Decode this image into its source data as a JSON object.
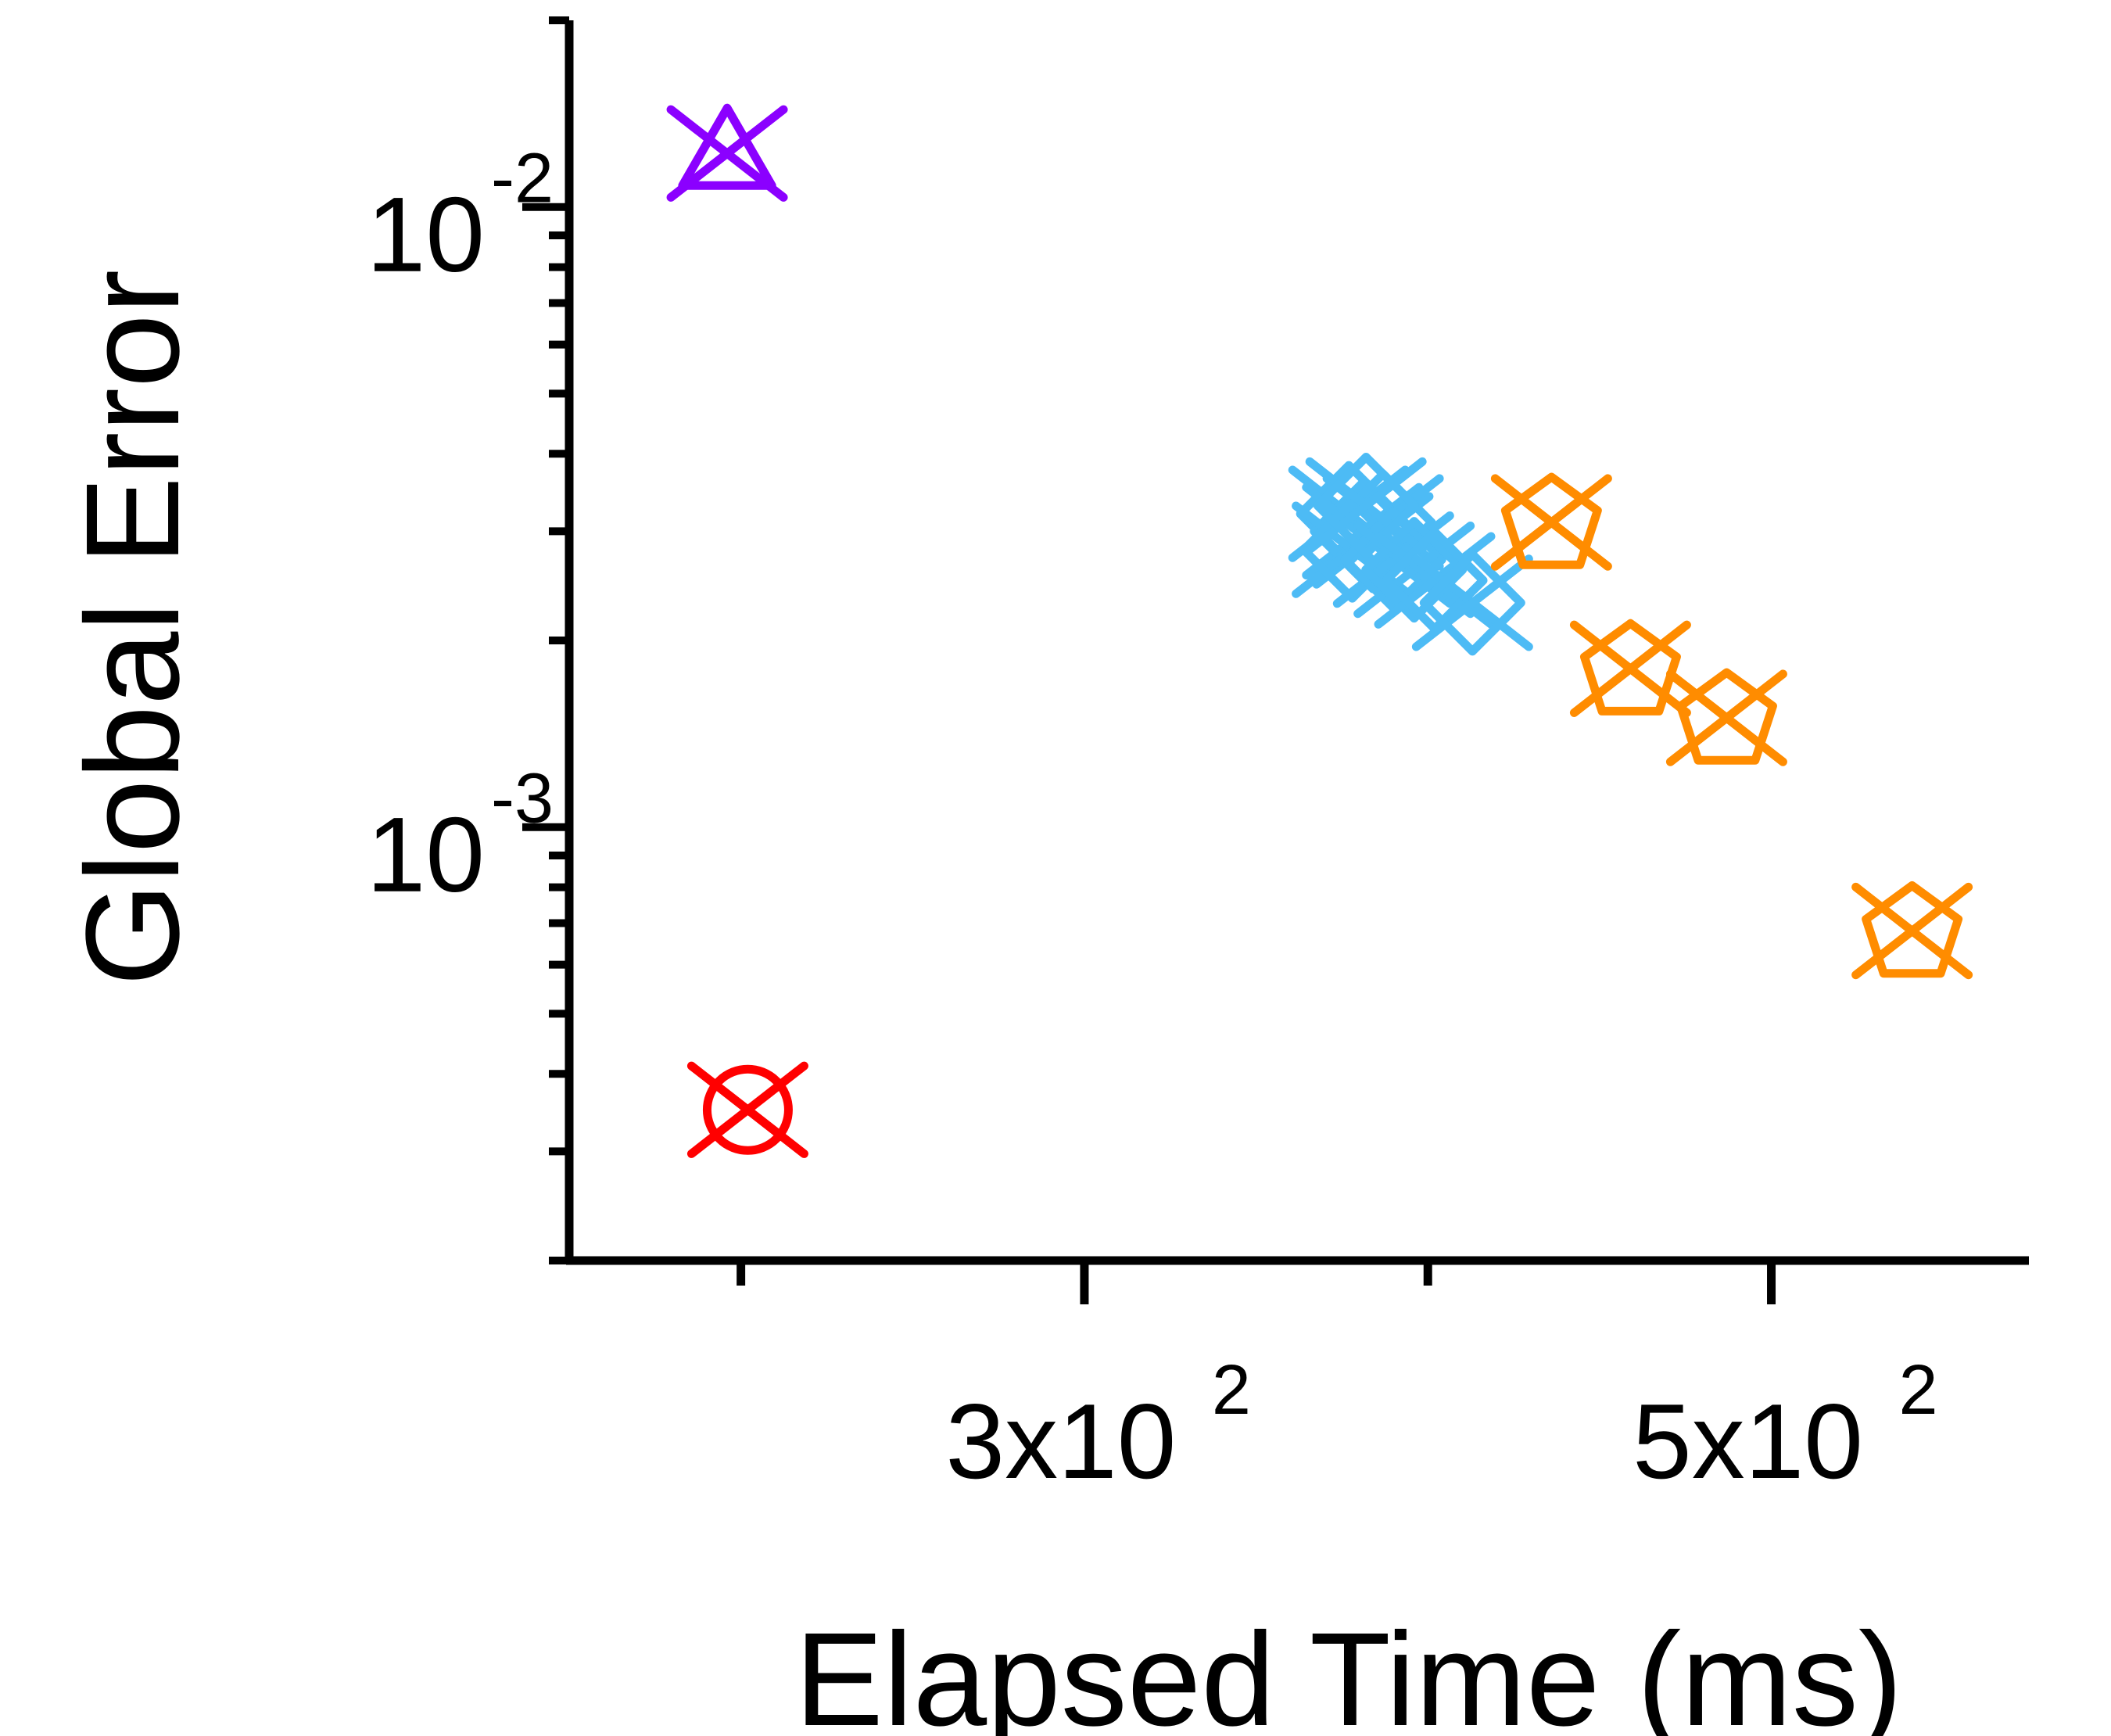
{
  "chart_data": {
    "type": "scatter",
    "title": "",
    "xlabel": "Elapsed Time (ms)",
    "ylabel": "Global Error",
    "xscale": "linear",
    "yscale": "log",
    "xlim": [
      150,
      575
    ],
    "ylim": [
      0.0002,
      0.02
    ],
    "grid": false,
    "legend": "none",
    "x_ticks": [
      {
        "value": 200,
        "label": ""
      },
      {
        "value": 300,
        "base": "3x10",
        "exp": "2"
      },
      {
        "value": 400,
        "label": ""
      },
      {
        "value": 500,
        "base": "5x10",
        "exp": "2"
      }
    ],
    "y_ticks": [
      {
        "value": 0.01,
        "base": "10",
        "exp": "-2"
      },
      {
        "value": 0.001,
        "base": "10",
        "exp": "-3"
      }
    ],
    "series": [
      {
        "marker": "triangle-cross",
        "color": "#8B00FF",
        "points": [
          {
            "x": 196,
            "y": 0.0122
          }
        ]
      },
      {
        "marker": "circle-cross",
        "color": "#FF0000",
        "points": [
          {
            "x": 202,
            "y": 0.00035
          }
        ]
      },
      {
        "marker": "diamond-cross",
        "color": "#4DBBF5",
        "points": [
          {
            "x": 377,
            "y": 0.0032
          },
          {
            "x": 381,
            "y": 0.003
          },
          {
            "x": 384,
            "y": 0.0029
          },
          {
            "x": 387,
            "y": 0.0031
          },
          {
            "x": 378,
            "y": 0.0028
          },
          {
            "x": 390,
            "y": 0.0027
          },
          {
            "x": 382,
            "y": 0.0033
          },
          {
            "x": 396,
            "y": 0.0026
          },
          {
            "x": 402,
            "y": 0.0025
          },
          {
            "x": 413,
            "y": 0.0023
          }
        ]
      },
      {
        "marker": "pentagon-cross",
        "color": "#FF8C00",
        "points": [
          {
            "x": 436,
            "y": 0.0031
          },
          {
            "x": 459,
            "y": 0.0018
          },
          {
            "x": 487,
            "y": 0.0015
          },
          {
            "x": 541,
            "y": 0.00068
          }
        ]
      }
    ]
  }
}
